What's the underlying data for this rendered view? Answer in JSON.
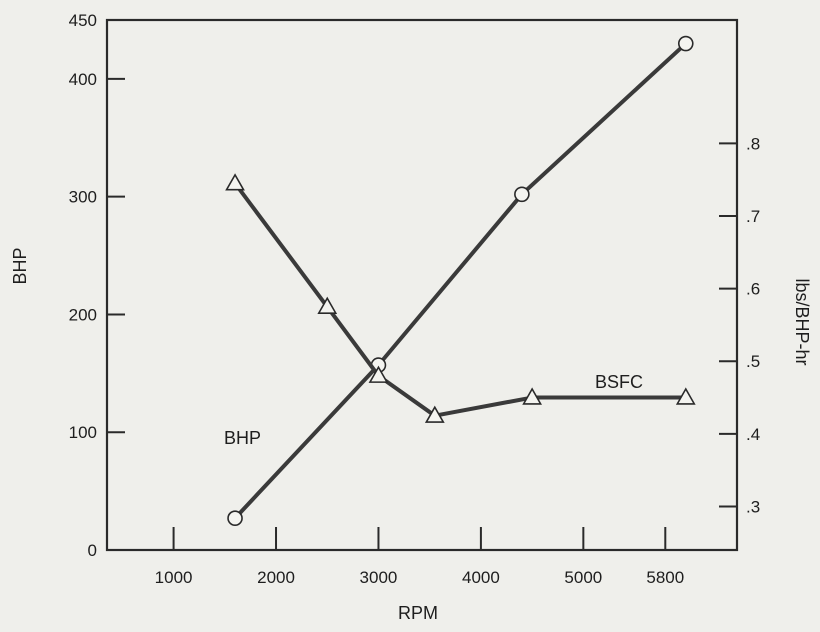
{
  "chart_data": {
    "type": "line",
    "xlabel": "RPM",
    "ylabel_left": "BHP",
    "ylabel_right": "lbs/BHP-hr",
    "x_ticks": [
      1000,
      2000,
      3000,
      4000,
      5000,
      5800
    ],
    "x_tick_labels": [
      "1000",
      "2000",
      "3000",
      "4000",
      "5000",
      "5800"
    ],
    "xlim": [
      350,
      6500
    ],
    "y_left_ticks": [
      0,
      100,
      200,
      300,
      400,
      450
    ],
    "y_left_tick_labels": [
      "0",
      "100",
      "200",
      "300",
      "400",
      "450"
    ],
    "ylim_left": [
      0,
      450
    ],
    "y_right_ticks": [
      0.3,
      0.4,
      0.5,
      0.6,
      0.7,
      0.8
    ],
    "y_right_tick_labels": [
      ".3",
      ".4",
      ".5",
      ".6",
      ".7",
      ".8"
    ],
    "ylim_right": [
      0.24,
      0.97
    ],
    "grid": false,
    "series": [
      {
        "name": "BHP",
        "axis": "left",
        "marker": "circle",
        "color": "#3a3a3a",
        "x": [
          1600,
          3000,
          4400,
          6000
        ],
        "y": [
          27,
          157,
          302,
          430
        ]
      },
      {
        "name": "BSFC",
        "axis": "right",
        "marker": "triangle",
        "color": "#3a3a3a",
        "x": [
          1600,
          2500,
          3000,
          3550,
          4500,
          6000
        ],
        "y": [
          0.745,
          0.575,
          0.48,
          0.425,
          0.45,
          0.45
        ]
      }
    ]
  }
}
